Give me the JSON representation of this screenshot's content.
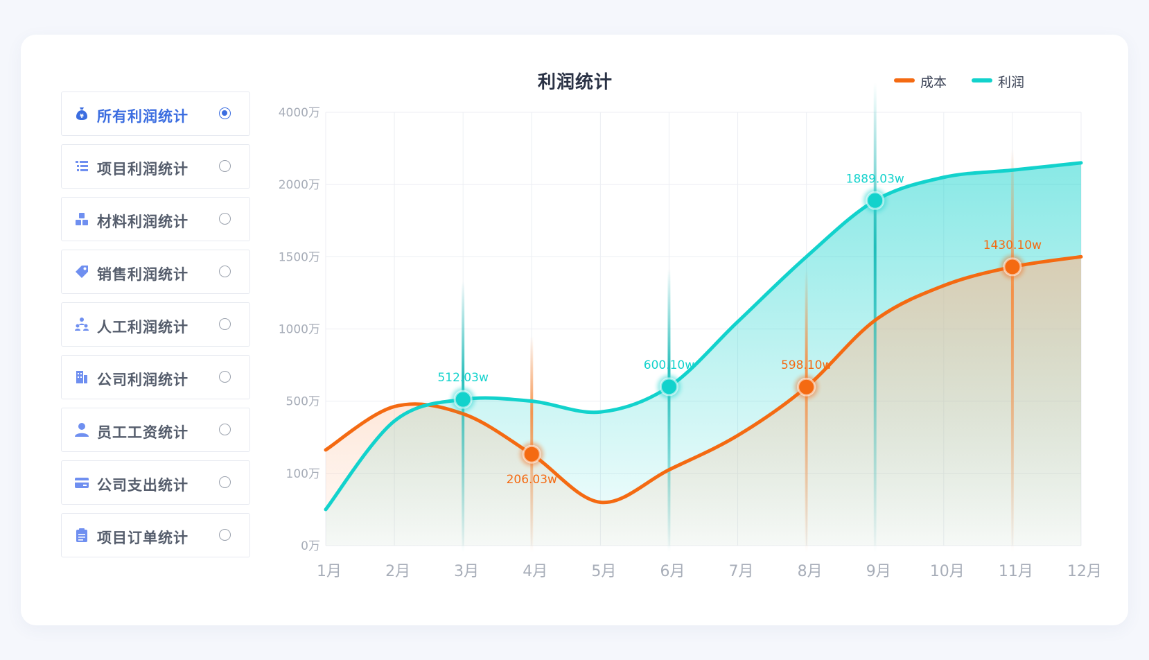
{
  "menu": {
    "items": [
      {
        "label": "所有利润统计",
        "icon": "money-bag-icon",
        "active": true
      },
      {
        "label": "项目利润统计",
        "icon": "list-icon",
        "active": false
      },
      {
        "label": "材料利润统计",
        "icon": "blocks-icon",
        "active": false
      },
      {
        "label": "销售利润统计",
        "icon": "tag-icon",
        "active": false
      },
      {
        "label": "人工利润统计",
        "icon": "team-icon",
        "active": false
      },
      {
        "label": "公司利润统计",
        "icon": "building-icon",
        "active": false
      },
      {
        "label": "员工工资统计",
        "icon": "user-icon",
        "active": false
      },
      {
        "label": "公司支出统计",
        "icon": "card-icon",
        "active": false
      },
      {
        "label": "项目订单统计",
        "icon": "clipboard-icon",
        "active": false
      }
    ],
    "accent": "#3b6de0",
    "icon_color": "#6f8ff0"
  },
  "chart_data": {
    "type": "area",
    "title": "利润统计",
    "xlabel": "",
    "ylabel": "",
    "categories": [
      "1月",
      "2月",
      "3月",
      "4月",
      "5月",
      "6月",
      "7月",
      "8月",
      "9月",
      "10月",
      "11月",
      "12月"
    ],
    "y_ticks": [
      "0万",
      "100万",
      "500万",
      "1000万",
      "1500万",
      "2000万",
      "4000万"
    ],
    "y_scale": "non-linear (tick labels at equal spacing)",
    "series": [
      {
        "name": "成本",
        "color": "#f46a12",
        "values": [
          230,
          470,
          430,
          206,
          60,
          120,
          310,
          598,
          1060,
          1300,
          1430,
          1500
        ],
        "labels": [
          {
            "month": "4月",
            "value": 206.03,
            "text": "206.03w",
            "position": "below"
          },
          {
            "month": "8月",
            "value": 598.1,
            "text": "598.10w",
            "position": "above"
          },
          {
            "month": "11月",
            "value": 1430.1,
            "text": "1430.10w",
            "position": "above"
          }
        ]
      },
      {
        "name": "利润",
        "color": "#12d2cc",
        "values": [
          50,
          390,
          512,
          500,
          440,
          600,
          1050,
          1500,
          1889,
          2200,
          2400,
          2600
        ],
        "labels": [
          {
            "month": "3月",
            "value": 512.03,
            "text": "512.03w",
            "position": "above"
          },
          {
            "month": "6月",
            "value": 600.1,
            "text": "600.10w",
            "position": "above"
          },
          {
            "month": "9月",
            "value": 1889.03,
            "text": "1889.03w",
            "position": "above"
          }
        ]
      }
    ],
    "legend": "top-right",
    "grid": true
  }
}
